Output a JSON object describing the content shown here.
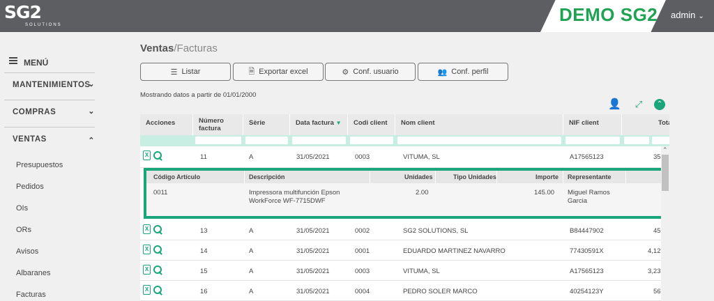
{
  "topbar": {
    "logo_main": "SG2",
    "logo_sub": "SOLUTIONS",
    "demo_label": "DEMO SG2",
    "user": "admin"
  },
  "sidebar": {
    "menu_label": "MENÚ",
    "sections": [
      "MANTENIMIENTOS",
      "COMPRAS",
      "VENTAS"
    ],
    "ventas_items": [
      "Presupuestos",
      "Pedidos",
      "OIs",
      "ORs",
      "Avisos",
      "Albaranes",
      "Facturas"
    ]
  },
  "breadcrumb": {
    "section": "Ventas",
    "separator": "/",
    "page": "Facturas"
  },
  "toolbar": {
    "listar": "Listar",
    "exportar": "Exportar excel",
    "conf_usuario": "Conf. usuario",
    "conf_perfil": "Conf. perfil"
  },
  "info_text": "Mostrando datos a partir de 01/01/2000",
  "table": {
    "headers": [
      "Acciones",
      "Número factura",
      "Sèrie",
      "Data factura",
      "Codi client",
      "Nom client",
      "NIF client",
      "Tota"
    ],
    "rows": [
      {
        "num": "11",
        "serie": "A",
        "fecha": "31/05/2021",
        "codi": "0003",
        "nom": "VITUMA, SL",
        "nif": "A17565123",
        "total": "35"
      },
      {
        "num": "13",
        "serie": "A",
        "fecha": "31/05/2021",
        "codi": "0002",
        "nom": "SG2 SOLUTIONS, SL",
        "nif": "B84447902",
        "total": "45"
      },
      {
        "num": "14",
        "serie": "A",
        "fecha": "31/05/2021",
        "codi": "0001",
        "nom": "EDUARDO MARTINEZ NAVARRO",
        "nif": "77430591X",
        "total": "4,12"
      },
      {
        "num": "15",
        "serie": "A",
        "fecha": "31/05/2021",
        "codi": "0003",
        "nom": "VITUMA, SL",
        "nif": "A17565123",
        "total": "3,23"
      },
      {
        "num": "16",
        "serie": "A",
        "fecha": "31/05/2021",
        "codi": "0004",
        "nom": "PEDRO SOLER MARCO",
        "nif": "40254123Y",
        "total": "56"
      }
    ],
    "detail": {
      "headers": [
        "Código Artículo",
        "Descripción",
        "Unidades",
        "Tipo Unidades",
        "Importe",
        "Representante"
      ],
      "row": {
        "codigo": "0011",
        "desc_line1": "Impressora multifunción Epson",
        "desc_line2": "WorkForce WF-7715DWF",
        "unidades": "2.00",
        "tipo": "",
        "importe": "145.00",
        "rep_line1": "Miguel Ramos",
        "rep_line2": "Garcia"
      }
    }
  },
  "colors": {
    "accent": "#1aa57a",
    "demo_green": "#1fa353",
    "topbar": "#5d5e61"
  }
}
